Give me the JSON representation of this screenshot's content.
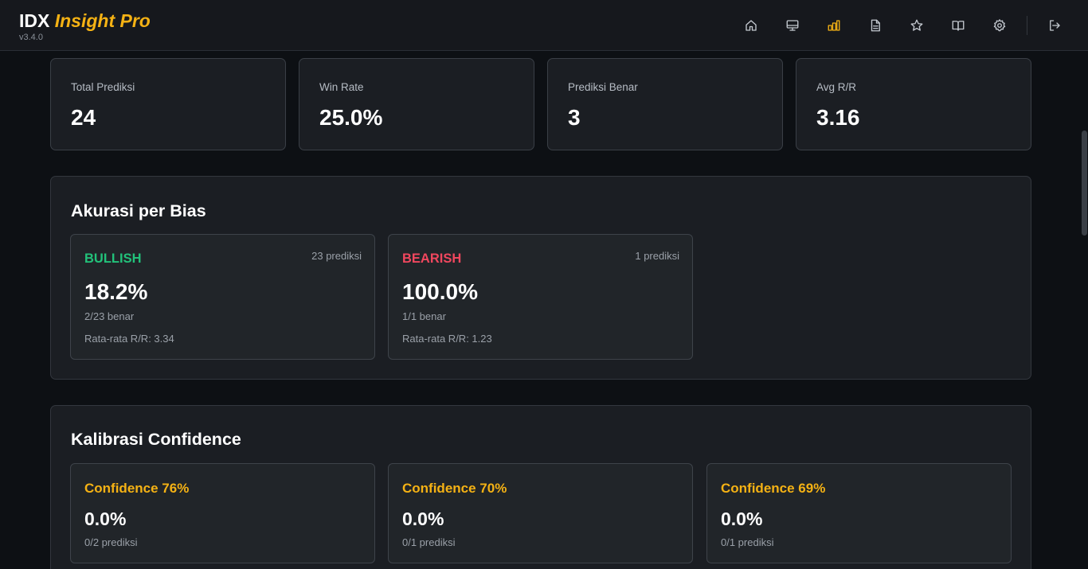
{
  "header": {
    "brand_primary": "IDX",
    "brand_accent": "Insight Pro",
    "version": "v3.4.0",
    "nav": [
      {
        "icon": "home-icon",
        "label": "home"
      },
      {
        "icon": "monitor-icon",
        "label": "dashboard"
      },
      {
        "icon": "bar-chart-icon",
        "label": "statistics",
        "active": true
      },
      {
        "icon": "document-icon",
        "label": "reports"
      },
      {
        "icon": "star-icon",
        "label": "watchlist"
      },
      {
        "icon": "book-icon",
        "label": "journal"
      },
      {
        "icon": "gear-icon",
        "label": "settings"
      },
      {
        "icon": "logout-icon",
        "label": "logout"
      }
    ]
  },
  "stats": [
    {
      "label": "Total Prediksi",
      "value": "24"
    },
    {
      "label": "Win Rate",
      "value": "25.0%"
    },
    {
      "label": "Prediksi Benar",
      "value": "3"
    },
    {
      "label": "Avg R/R",
      "value": "3.16"
    }
  ],
  "bias_section": {
    "title": "Akurasi per Bias",
    "items": [
      {
        "label": "BULLISH",
        "count": "23 prediksi",
        "accuracy": "18.2%",
        "benar": "2/23 benar",
        "rr": "Rata-rata R/R: 3.34",
        "color": "#22c27a"
      },
      {
        "label": "BEARISH",
        "count": "1 prediksi",
        "accuracy": "100.0%",
        "benar": "1/1 benar",
        "rr": "Rata-rata R/R: 1.23",
        "color": "#f0475e"
      }
    ]
  },
  "confidence_section": {
    "title": "Kalibrasi Confidence",
    "items": [
      {
        "label": "Confidence 76%",
        "accuracy": "0.0%",
        "sub": "0/2 prediksi"
      },
      {
        "label": "Confidence 70%",
        "accuracy": "0.0%",
        "sub": "0/1 prediksi"
      },
      {
        "label": "Confidence 69%",
        "accuracy": "0.0%",
        "sub": "0/1 prediksi"
      }
    ]
  },
  "colors": {
    "accent": "#f5b214",
    "bullish": "#22c27a",
    "bearish": "#f0475e"
  }
}
